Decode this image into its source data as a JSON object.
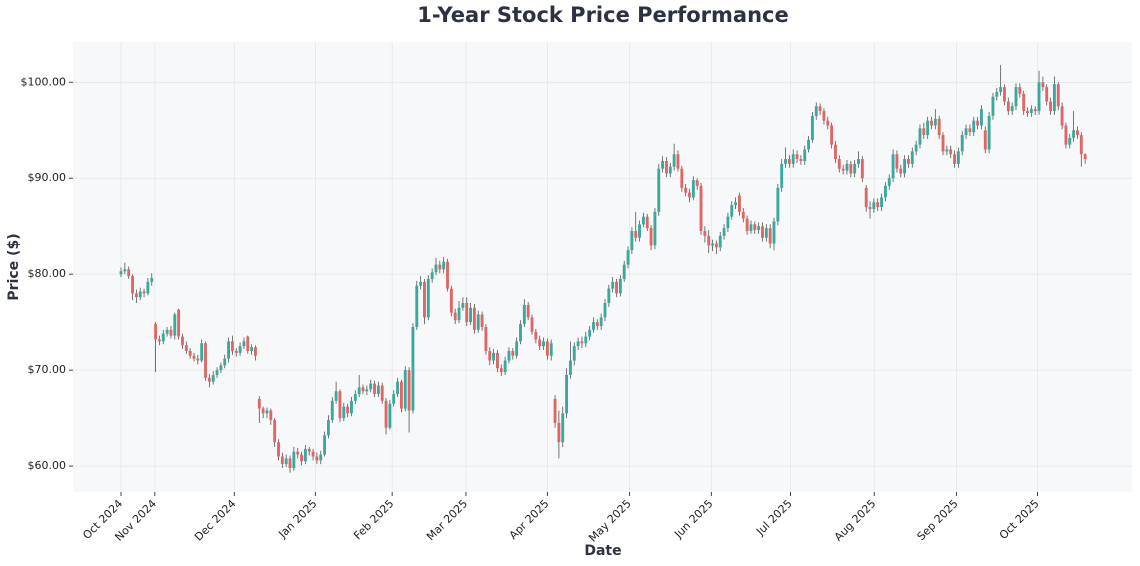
{
  "chart_data": {
    "type": "candlestick",
    "title": "1-Year Stock Price Performance",
    "x_label": "Date",
    "y_label": "Price ($)",
    "up_color": "#3aa89b",
    "down_color": "#e06666",
    "grid": true,
    "xlim": [
      -12.5,
      263.2
    ],
    "xticks": [
      {
        "value": 0,
        "label": "Oct 2024"
      },
      {
        "value": 8.8,
        "label": "Nov 2024"
      },
      {
        "value": 29.5,
        "label": "Dec 2024"
      },
      {
        "value": 50.6,
        "label": "Jan 2025"
      },
      {
        "value": 70.6,
        "label": "Feb 2025"
      },
      {
        "value": 89.8,
        "label": "Mar 2025"
      },
      {
        "value": 111,
        "label": "Apr 2025"
      },
      {
        "value": 132.4,
        "label": "May 2025"
      },
      {
        "value": 153.7,
        "label": "Jun 2025"
      },
      {
        "value": 174.3,
        "label": "Jul 2025"
      },
      {
        "value": 196.1,
        "label": "Aug 2025"
      },
      {
        "value": 217.5,
        "label": "Sep 2025"
      },
      {
        "value": 238.6,
        "label": "Oct 2025"
      }
    ],
    "ylim": [
      57.3,
      104.2
    ],
    "yticks": [
      {
        "value": 60,
        "label": "$60.00"
      },
      {
        "value": 70,
        "label": "$70.00"
      },
      {
        "value": 80,
        "label": "$80.00"
      },
      {
        "value": 90,
        "label": "$90.00"
      },
      {
        "value": 100,
        "label": "$100.00"
      }
    ],
    "open": [
      80.0,
      80.3,
      80.5,
      79.8,
      78.0,
      77.6,
      78.2,
      78.0,
      79.2,
      74.8,
      73.2,
      73.0,
      73.8,
      74.2,
      73.6,
      76.3,
      73.5,
      72.6,
      72.0,
      71.5,
      71.2,
      71.0,
      72.8,
      69.2,
      68.8,
      69.5,
      70.0,
      70.5,
      71.2,
      73.0,
      72.0,
      71.8,
      72.5,
      73.5,
      72.0,
      72.4,
      67.0,
      66.0,
      65.5,
      65.8,
      64.8,
      62.5,
      61.0,
      60.2,
      60.8,
      59.8,
      61.5,
      61.2,
      60.5,
      61.8,
      61.5,
      61.0,
      60.6,
      61.2,
      63.2,
      64.8,
      66.8,
      67.8,
      65.0,
      66.2,
      65.5,
      66.8,
      67.5,
      68.2,
      67.8,
      68.0,
      68.6,
      67.5,
      68.4,
      66.8,
      64.0,
      66.5,
      67.5,
      68.8,
      66.0,
      70.0,
      65.8,
      74.5,
      78.8,
      79.2,
      75.5,
      79.5,
      80.2,
      81.0,
      80.5,
      81.3,
      78.5,
      76.0,
      75.2,
      76.5,
      77.0,
      75.0,
      76.5,
      74.2,
      75.8,
      74.5,
      72.0,
      71.0,
      71.8,
      70.2,
      69.8,
      71.0,
      72.0,
      71.5,
      73.0,
      74.8,
      76.8,
      75.5,
      74.0,
      73.2,
      72.5,
      73.0,
      71.5,
      67.0,
      64.5,
      62.5,
      65.5,
      69.5,
      71.0,
      72.5,
      73.0,
      72.8,
      73.5,
      74.2,
      75.0,
      74.6,
      75.5,
      77.0,
      78.5,
      79.2,
      78.0,
      79.5,
      81.0,
      82.5,
      84.5,
      83.8,
      85.2,
      86.0,
      84.8,
      83.0,
      86.5,
      91.0,
      91.8,
      90.5,
      91.2,
      92.5,
      91.0,
      89.0,
      88.5,
      88.0,
      89.8,
      89.2,
      84.5,
      84.0,
      83.0,
      83.2,
      82.8,
      84.0,
      84.8,
      86.0,
      87.2,
      88.2,
      86.5,
      85.8,
      84.5,
      85.2,
      84.6,
      85.0,
      83.8,
      84.8,
      83.2,
      85.5,
      89.0,
      91.5,
      92.0,
      91.5,
      92.5,
      92.0,
      91.8,
      93.0,
      94.0,
      96.5,
      97.5,
      97.0,
      96.0,
      95.5,
      93.5,
      92.0,
      91.0,
      90.8,
      91.5,
      90.5,
      91.5,
      92.0,
      89.0,
      87.0,
      86.8,
      87.5,
      87.0,
      88.0,
      89.2,
      90.0,
      92.5,
      91.0,
      90.5,
      92.0,
      91.5,
      92.8,
      93.5,
      95.2,
      94.5,
      96.0,
      95.5,
      96.2,
      94.5,
      92.8,
      93.0,
      92.5,
      91.5,
      92.8,
      94.5,
      95.2,
      94.8,
      96.0,
      95.5,
      95.0,
      93.0,
      96.5,
      98.5,
      99.0,
      99.5,
      98.0,
      97.0,
      97.5,
      99.5,
      98.8,
      97.0,
      96.8,
      97.2,
      97.0,
      100.0,
      99.5,
      98.0,
      97.0,
      99.8,
      97.5,
      95.5,
      93.5,
      94.2,
      95.0,
      94.5,
      92.5
    ],
    "high": [
      80.7,
      81.2,
      80.8,
      80.0,
      78.4,
      78.6,
      78.5,
      79.6,
      80.1,
      75.0,
      73.6,
      74.2,
      74.5,
      74.6,
      76.0,
      76.4,
      73.8,
      73.0,
      72.3,
      71.8,
      71.6,
      73.2,
      73.0,
      69.6,
      69.9,
      70.3,
      70.8,
      71.6,
      73.4,
      73.6,
      72.3,
      72.9,
      73.4,
      73.6,
      72.7,
      72.6,
      67.3,
      66.2,
      66.1,
      66.0,
      65.0,
      62.8,
      61.4,
      61.2,
      61.1,
      62.0,
      61.9,
      61.5,
      62.2,
      62.0,
      61.8,
      61.4,
      61.6,
      63.6,
      65.3,
      67.2,
      68.8,
      68.0,
      66.6,
      66.5,
      67.2,
      67.9,
      69.5,
      68.5,
      68.4,
      69.0,
      68.9,
      68.8,
      68.7,
      67.1,
      66.9,
      67.9,
      69.2,
      69.0,
      70.4,
      70.3,
      74.9,
      79.3,
      79.8,
      79.5,
      79.9,
      80.6,
      81.7,
      81.4,
      81.8,
      81.6,
      78.8,
      76.4,
      77.2,
      77.6,
      77.6,
      77.0,
      76.9,
      76.2,
      76.1,
      74.8,
      72.4,
      72.2,
      72.1,
      70.6,
      71.4,
      72.4,
      72.3,
      73.4,
      75.2,
      77.4,
      77.1,
      75.8,
      74.3,
      73.6,
      73.4,
      73.3,
      73.2,
      67.4,
      65.8,
      66.2,
      70.2,
      73.0,
      72.9,
      73.4,
      73.5,
      74.0,
      74.6,
      75.5,
      75.3,
      75.9,
      77.4,
      78.9,
      79.7,
      79.5,
      79.9,
      81.4,
      82.9,
      84.9,
      86.5,
      85.6,
      86.4,
      86.3,
      85.1,
      86.9,
      91.5,
      92.3,
      92.2,
      91.6,
      93.6,
      92.9,
      91.3,
      89.4,
      88.9,
      90.2,
      90.0,
      89.5,
      85.0,
      84.6,
      83.6,
      83.5,
      84.4,
      85.2,
      86.4,
      87.6,
      88.0,
      88.5,
      86.9,
      86.1,
      85.6,
      85.5,
      85.4,
      85.4,
      85.2,
      85.2,
      85.9,
      89.4,
      92.0,
      93.2,
      92.4,
      93.0,
      92.9,
      92.4,
      93.4,
      94.4,
      96.9,
      97.9,
      97.8,
      97.3,
      96.4,
      95.8,
      93.9,
      92.4,
      91.4,
      91.9,
      91.8,
      91.9,
      92.8,
      92.3,
      89.3,
      87.6,
      87.9,
      87.9,
      88.4,
      89.6,
      90.4,
      93.0,
      92.9,
      91.4,
      92.4,
      92.4,
      93.2,
      93.9,
      95.6,
      95.8,
      96.4,
      96.4,
      97.2,
      96.5,
      94.8,
      93.4,
      93.4,
      92.9,
      93.2,
      94.9,
      95.6,
      95.6,
      96.4,
      96.4,
      97.6,
      95.4,
      96.9,
      98.9,
      99.4,
      101.8,
      99.8,
      98.4,
      97.9,
      99.9,
      99.9,
      99.1,
      97.4,
      97.6,
      97.5,
      101.2,
      100.6,
      99.8,
      98.4,
      100.6,
      100.0,
      97.9,
      95.8,
      94.6,
      97.0,
      95.4,
      94.8,
      92.6
    ],
    "low": [
      79.7,
      80.0,
      79.5,
      77.3,
      77.0,
      77.3,
      77.6,
      77.8,
      78.8,
      69.8,
      72.6,
      72.7,
      73.5,
      73.3,
      73.2,
      73.2,
      72.2,
      71.7,
      71.2,
      70.9,
      70.6,
      70.8,
      68.9,
      68.2,
      68.5,
      69.2,
      69.7,
      70.2,
      70.8,
      71.6,
      71.4,
      71.5,
      72.2,
      71.7,
      71.6,
      71.0,
      64.5,
      65.0,
      65.0,
      64.3,
      62.0,
      60.6,
      59.8,
      59.9,
      59.3,
      59.5,
      60.8,
      60.1,
      60.2,
      61.1,
      60.6,
      60.2,
      60.2,
      61.0,
      62.9,
      64.5,
      66.5,
      64.6,
      64.7,
      65.1,
      65.2,
      66.5,
      67.2,
      67.5,
      67.4,
      67.7,
      67.2,
      67.2,
      66.5,
      63.3,
      63.8,
      66.2,
      67.2,
      65.6,
      65.7,
      63.5,
      65.5,
      74.2,
      78.4,
      74.8,
      75.2,
      79.1,
      79.9,
      80.1,
      80.1,
      78.2,
      75.6,
      74.8,
      74.9,
      76.2,
      74.6,
      74.7,
      73.8,
      73.9,
      74.1,
      71.6,
      70.5,
      70.6,
      69.8,
      69.4,
      69.5,
      70.7,
      71.1,
      71.2,
      72.7,
      74.5,
      75.2,
      73.7,
      72.8,
      72.1,
      72.1,
      71.1,
      71.0,
      64.0,
      60.8,
      62.0,
      65.0,
      69.1,
      70.5,
      72.1,
      72.3,
      72.4,
      73.1,
      73.9,
      74.2,
      74.2,
      75.1,
      76.6,
      78.1,
      77.6,
      77.7,
      79.2,
      80.6,
      82.1,
      83.4,
      83.4,
      84.9,
      84.5,
      82.5,
      82.6,
      86.1,
      90.6,
      90.1,
      90.1,
      90.8,
      90.7,
      88.6,
      88.1,
      87.5,
      87.7,
      88.8,
      84.1,
      83.3,
      82.2,
      82.4,
      82.1,
      82.4,
      83.6,
      84.4,
      85.7,
      86.8,
      86.1,
      85.4,
      84.1,
      84.2,
      84.2,
      84.2,
      83.4,
      83.4,
      82.7,
      82.5,
      85.1,
      88.6,
      91.1,
      91.1,
      91.1,
      91.6,
      91.4,
      91.4,
      92.7,
      93.7,
      96.1,
      96.6,
      95.6,
      95.1,
      93.1,
      91.6,
      90.6,
      90.4,
      90.4,
      90.1,
      90.1,
      91.1,
      89.6,
      86.5,
      85.8,
      86.4,
      86.6,
      86.6,
      87.6,
      88.8,
      89.6,
      90.6,
      90.1,
      90.1,
      91.1,
      91.1,
      92.4,
      93.1,
      94.1,
      94.1,
      95.1,
      95.1,
      94.1,
      92.4,
      92.4,
      92.1,
      91.1,
      91.1,
      92.4,
      94.1,
      94.4,
      94.4,
      95.1,
      95.1,
      92.6,
      92.6,
      96.1,
      98.1,
      98.6,
      97.6,
      96.6,
      96.6,
      97.1,
      98.4,
      96.6,
      96.4,
      96.4,
      96.6,
      96.6,
      99.1,
      97.6,
      96.6,
      96.6,
      97.1,
      95.1,
      93.1,
      93.1,
      93.8,
      94.1,
      91.2,
      91.5
    ],
    "close": [
      80.3,
      80.5,
      79.8,
      78.0,
      77.6,
      78.2,
      78.0,
      79.2,
      79.6,
      73.2,
      73.0,
      73.8,
      74.2,
      73.6,
      75.8,
      73.5,
      72.6,
      72.0,
      71.5,
      71.2,
      71.0,
      72.8,
      69.2,
      68.8,
      69.5,
      70.0,
      70.5,
      71.2,
      73.0,
      72.0,
      71.8,
      72.5,
      73.0,
      72.0,
      72.4,
      71.5,
      66.0,
      65.5,
      65.8,
      64.8,
      62.5,
      61.0,
      60.2,
      60.8,
      59.8,
      61.5,
      61.2,
      60.5,
      61.8,
      61.5,
      61.0,
      60.6,
      61.2,
      63.2,
      64.8,
      66.8,
      67.8,
      65.0,
      66.2,
      65.5,
      66.8,
      67.5,
      68.2,
      67.8,
      68.0,
      68.6,
      67.5,
      68.4,
      66.8,
      64.0,
      66.5,
      67.5,
      68.8,
      66.0,
      70.0,
      65.8,
      74.5,
      78.8,
      79.2,
      75.5,
      79.5,
      80.2,
      81.0,
      80.5,
      81.3,
      78.5,
      76.0,
      75.2,
      76.5,
      77.0,
      75.0,
      76.5,
      74.2,
      75.8,
      74.5,
      72.0,
      71.0,
      71.8,
      70.2,
      69.8,
      71.0,
      72.0,
      71.5,
      73.0,
      74.8,
      76.8,
      75.5,
      74.0,
      73.2,
      72.5,
      73.0,
      71.5,
      72.8,
      64.5,
      62.5,
      65.5,
      69.5,
      71.0,
      72.5,
      73.0,
      72.8,
      73.5,
      74.2,
      75.0,
      74.6,
      75.5,
      77.0,
      78.5,
      79.2,
      78.0,
      79.5,
      81.0,
      82.5,
      84.5,
      83.8,
      85.2,
      86.0,
      84.8,
      83.0,
      86.5,
      91.0,
      91.8,
      90.5,
      91.2,
      92.5,
      91.0,
      89.0,
      88.5,
      88.0,
      89.8,
      89.2,
      84.5,
      84.0,
      83.0,
      83.2,
      82.8,
      84.0,
      84.8,
      86.0,
      87.2,
      87.5,
      86.5,
      85.8,
      84.5,
      85.2,
      84.6,
      85.0,
      83.8,
      84.8,
      83.2,
      85.5,
      89.0,
      91.5,
      92.0,
      91.5,
      92.5,
      92.0,
      91.8,
      93.0,
      94.0,
      96.5,
      97.5,
      97.0,
      96.0,
      95.5,
      93.5,
      92.0,
      91.0,
      90.8,
      91.5,
      90.5,
      91.5,
      92.0,
      90.0,
      87.0,
      86.8,
      87.5,
      87.0,
      88.0,
      89.2,
      90.0,
      92.5,
      91.0,
      90.5,
      92.0,
      91.5,
      92.8,
      93.5,
      95.2,
      94.5,
      96.0,
      95.5,
      96.2,
      94.5,
      92.8,
      93.0,
      92.5,
      91.5,
      92.8,
      94.5,
      95.2,
      94.8,
      96.0,
      95.5,
      97.2,
      93.0,
      96.5,
      98.5,
      99.0,
      99.5,
      98.0,
      97.0,
      97.5,
      99.5,
      98.8,
      97.0,
      96.8,
      97.2,
      97.0,
      100.0,
      99.5,
      98.0,
      97.0,
      99.8,
      97.5,
      95.5,
      93.5,
      94.2,
      95.0,
      94.5,
      92.5,
      92.0
    ]
  }
}
